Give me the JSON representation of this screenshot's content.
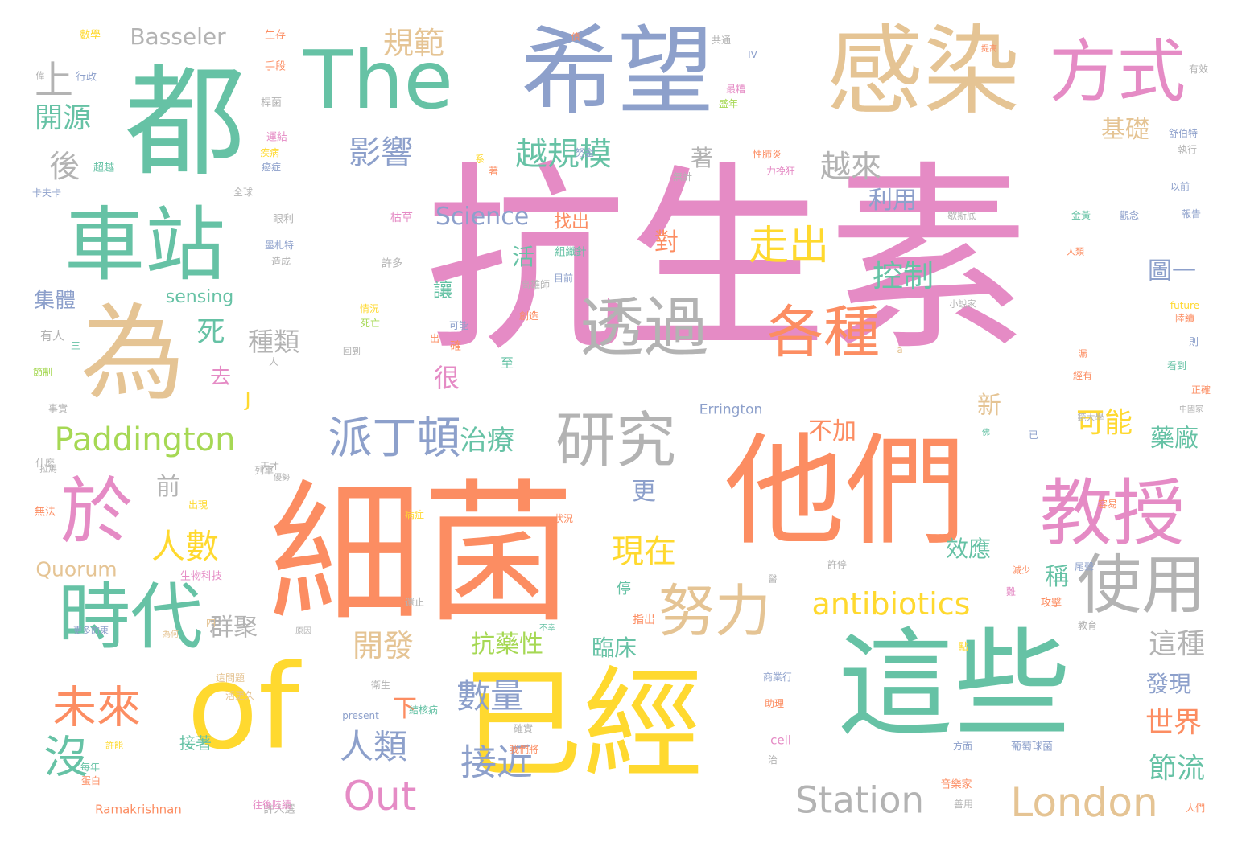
{
  "palette": {
    "pink": "#e58bc5",
    "orange": "#fc8d62",
    "green": "#66c2a5",
    "blue": "#8da0cb",
    "yellow": "#ffd92f",
    "tan": "#e5c494",
    "gray": "#b3b3b3",
    "lime": "#a6d854"
  },
  "words": [
    {
      "text": "抗生素",
      "color": "pink"
    },
    {
      "text": "細菌",
      "color": "orange"
    },
    {
      "text": "他們",
      "color": "orange"
    },
    {
      "text": "這些",
      "color": "green"
    },
    {
      "text": "已經",
      "color": "yellow"
    },
    {
      "text": "of",
      "color": "yellow"
    },
    {
      "text": "都",
      "color": "green"
    },
    {
      "text": "希望",
      "color": "blue"
    },
    {
      "text": "感染",
      "color": "tan"
    },
    {
      "text": "The",
      "color": "green"
    },
    {
      "text": "為",
      "color": "tan"
    },
    {
      "text": "車站",
      "color": "green"
    },
    {
      "text": "方式",
      "color": "pink"
    },
    {
      "text": "時代",
      "color": "green"
    },
    {
      "text": "於",
      "color": "pink"
    },
    {
      "text": "教授",
      "color": "pink"
    },
    {
      "text": "透過",
      "color": "gray"
    },
    {
      "text": "各種",
      "color": "orange"
    },
    {
      "text": "研究",
      "color": "gray"
    },
    {
      "text": "使用",
      "color": "gray"
    },
    {
      "text": "努力",
      "color": "tan"
    },
    {
      "text": "派丁頓",
      "color": "blue"
    },
    {
      "text": "Paddington",
      "color": "lime"
    },
    {
      "text": "London",
      "color": "tan"
    },
    {
      "text": "Station",
      "color": "gray"
    },
    {
      "text": "Out",
      "color": "pink"
    },
    {
      "text": "antibiotics",
      "color": "yellow"
    },
    {
      "text": "沒",
      "color": "green"
    },
    {
      "text": "未來",
      "color": "orange"
    },
    {
      "text": "上",
      "color": "gray"
    },
    {
      "text": "走出",
      "color": "yellow"
    },
    {
      "text": "影響",
      "color": "blue"
    },
    {
      "text": "越規模",
      "color": "green"
    },
    {
      "text": "越來",
      "color": "gray"
    },
    {
      "text": "控制",
      "color": "green"
    },
    {
      "text": "人數",
      "color": "yellow"
    },
    {
      "text": "接近",
      "color": "blue"
    },
    {
      "text": "數量",
      "color": "blue"
    },
    {
      "text": "人類",
      "color": "blue"
    },
    {
      "text": "現在",
      "color": "yellow"
    },
    {
      "text": "開發",
      "color": "tan"
    },
    {
      "text": "Science",
      "color": "blue"
    },
    {
      "text": "規範",
      "color": "tan"
    },
    {
      "text": "開源",
      "color": "green"
    },
    {
      "text": "後",
      "color": "gray"
    },
    {
      "text": "死",
      "color": "green"
    },
    {
      "text": "種類",
      "color": "gray"
    },
    {
      "text": "很",
      "color": "pink"
    },
    {
      "text": "治療",
      "color": "green"
    },
    {
      "text": "可能",
      "color": "yellow"
    },
    {
      "text": "基礎",
      "color": "tan"
    },
    {
      "text": "利用",
      "color": "blue"
    },
    {
      "text": "圖一",
      "color": "blue"
    },
    {
      "text": "前",
      "color": "gray"
    },
    {
      "text": "更",
      "color": "blue"
    },
    {
      "text": "這種",
      "color": "gray"
    },
    {
      "text": "世界",
      "color": "orange"
    },
    {
      "text": "節流",
      "color": "green"
    },
    {
      "text": "藥廠",
      "color": "green"
    },
    {
      "text": "發現",
      "color": "blue"
    },
    {
      "text": "抗藥性",
      "color": "lime"
    },
    {
      "text": "臨床",
      "color": "green"
    },
    {
      "text": "效應",
      "color": "green"
    },
    {
      "text": "群聚",
      "color": "gray"
    },
    {
      "text": "下",
      "color": "orange"
    },
    {
      "text": "不加",
      "color": "orange"
    },
    {
      "text": "新",
      "color": "tan"
    },
    {
      "text": "稱",
      "color": "green"
    },
    {
      "text": "Basseler",
      "color": "gray"
    },
    {
      "text": "集體",
      "color": "blue"
    },
    {
      "text": "sensing",
      "color": "green"
    },
    {
      "text": "Quorum",
      "color": "tan"
    },
    {
      "text": "對",
      "color": "orange"
    },
    {
      "text": "著",
      "color": "gray"
    },
    {
      "text": "活",
      "color": "green"
    },
    {
      "text": "找出",
      "color": "orange"
    },
    {
      "text": "讓",
      "color": "green"
    },
    {
      "text": "去",
      "color": "pink"
    },
    {
      "text": "J",
      "color": "yellow"
    },
    {
      "text": "接著",
      "color": "green"
    },
    {
      "text": "Errington",
      "color": "blue"
    },
    {
      "text": "Ramakrishnan",
      "color": "orange"
    },
    {
      "text": "cell",
      "color": "pink"
    },
    {
      "text": "present",
      "color": "blue"
    },
    {
      "text": "future",
      "color": "yellow"
    },
    {
      "text": "IV",
      "color": "blue"
    },
    {
      "text": "a",
      "color": "tan"
    },
    {
      "text": "生存",
      "color": "orange"
    },
    {
      "text": "數學",
      "color": "yellow"
    },
    {
      "text": "行政",
      "color": "blue"
    },
    {
      "text": "偉",
      "color": "gray"
    },
    {
      "text": "手段",
      "color": "orange"
    },
    {
      "text": "桿菌",
      "color": "gray"
    },
    {
      "text": "運結",
      "color": "pink"
    },
    {
      "text": "疾病",
      "color": "yellow"
    },
    {
      "text": "癌症",
      "color": "blue"
    },
    {
      "text": "超越",
      "color": "green"
    },
    {
      "text": "卡夫卡",
      "color": "blue"
    },
    {
      "text": "全球",
      "color": "gray"
    },
    {
      "text": "眼利",
      "color": "gray"
    },
    {
      "text": "墨札特",
      "color": "blue"
    },
    {
      "text": "造成",
      "color": "gray"
    },
    {
      "text": "有人",
      "color": "gray"
    },
    {
      "text": "三",
      "color": "green"
    },
    {
      "text": "節制",
      "color": "lime"
    },
    {
      "text": "事實",
      "color": "gray"
    },
    {
      "text": "拉馬",
      "color": "gray"
    },
    {
      "text": "無法",
      "color": "orange"
    },
    {
      "text": "每年",
      "color": "green"
    },
    {
      "text": "蛋白",
      "color": "orange"
    },
    {
      "text": "許能",
      "color": "yellow"
    },
    {
      "text": "更多的東",
      "color": "blue"
    },
    {
      "text": "生物科技",
      "color": "pink"
    },
    {
      "text": "許多",
      "color": "gray"
    },
    {
      "text": "枯草",
      "color": "pink"
    },
    {
      "text": "組織針",
      "color": "green"
    },
    {
      "text": "目前",
      "color": "blue"
    },
    {
      "text": "高雄師",
      "color": "gray"
    },
    {
      "text": "情況",
      "color": "yellow"
    },
    {
      "text": "死亡",
      "color": "lime"
    },
    {
      "text": "回到",
      "color": "gray"
    },
    {
      "text": "可能",
      "color": "blue"
    },
    {
      "text": "創造",
      "color": "orange"
    },
    {
      "text": "性肺炎",
      "color": "orange"
    },
    {
      "text": "力挽狂",
      "color": "pink"
    },
    {
      "text": "無計",
      "color": "gray"
    },
    {
      "text": "努金",
      "color": "blue"
    },
    {
      "text": "系",
      "color": "yellow"
    },
    {
      "text": "著",
      "color": "orange"
    },
    {
      "text": "共通",
      "color": "gray"
    },
    {
      "text": "最糟",
      "color": "pink"
    },
    {
      "text": "盛年",
      "color": "lime"
    },
    {
      "text": "債",
      "color": "orange"
    },
    {
      "text": "提高",
      "color": "orange"
    },
    {
      "text": "有效",
      "color": "gray"
    },
    {
      "text": "舒伯特",
      "color": "blue"
    },
    {
      "text": "執行",
      "color": "gray"
    },
    {
      "text": "以前",
      "color": "blue"
    },
    {
      "text": "報告",
      "color": "blue"
    },
    {
      "text": "觀念",
      "color": "blue"
    },
    {
      "text": "金黃",
      "color": "green"
    },
    {
      "text": "歇斯底",
      "color": "gray"
    },
    {
      "text": "人類",
      "color": "orange"
    },
    {
      "text": "小說家",
      "color": "gray"
    },
    {
      "text": "陸續",
      "color": "orange"
    },
    {
      "text": "則",
      "color": "blue"
    },
    {
      "text": "看到",
      "color": "green"
    },
    {
      "text": "漏",
      "color": "orange"
    },
    {
      "text": "經有",
      "color": "orange"
    },
    {
      "text": "正確",
      "color": "orange"
    },
    {
      "text": "中國家",
      "color": "gray"
    },
    {
      "text": "範大學",
      "color": "gray"
    },
    {
      "text": "已",
      "color": "blue"
    },
    {
      "text": "容易",
      "color": "orange"
    },
    {
      "text": "尾聲",
      "color": "blue"
    },
    {
      "text": "減少",
      "color": "orange"
    },
    {
      "text": "許停",
      "color": "gray"
    },
    {
      "text": "難",
      "color": "pink"
    },
    {
      "text": "攻擊",
      "color": "orange"
    },
    {
      "text": "教育",
      "color": "gray"
    },
    {
      "text": "點",
      "color": "yellow"
    },
    {
      "text": "商業行",
      "color": "blue"
    },
    {
      "text": "助理",
      "color": "orange"
    },
    {
      "text": "葡萄球菌",
      "color": "blue"
    },
    {
      "text": "方面",
      "color": "blue"
    },
    {
      "text": "音樂家",
      "color": "orange"
    },
    {
      "text": "人們",
      "color": "orange"
    },
    {
      "text": "善用",
      "color": "gray"
    },
    {
      "text": "我們將",
      "color": "orange"
    },
    {
      "text": "結核病",
      "color": "green"
    },
    {
      "text": "衛生",
      "color": "gray"
    },
    {
      "text": "出現",
      "color": "yellow"
    },
    {
      "text": "什麼",
      "color": "gray"
    },
    {
      "text": "天才",
      "color": "gray"
    },
    {
      "text": "列車",
      "color": "gray"
    },
    {
      "text": "優勢",
      "color": "gray"
    },
    {
      "text": "許人選",
      "color": "gray"
    },
    {
      "text": "往後陸續",
      "color": "pink"
    },
    {
      "text": "停",
      "color": "green"
    },
    {
      "text": "指出",
      "color": "orange"
    },
    {
      "text": "還止",
      "color": "gray"
    },
    {
      "text": "病症",
      "color": "yellow"
    },
    {
      "text": "狀況",
      "color": "orange"
    },
    {
      "text": "不幸",
      "color": "green"
    },
    {
      "text": "至",
      "color": "green"
    },
    {
      "text": "確",
      "color": "orange"
    },
    {
      "text": "出",
      "color": "orange"
    },
    {
      "text": "人",
      "color": "gray"
    },
    {
      "text": "四",
      "color": "tan"
    },
    {
      "text": "為何",
      "color": "tan"
    },
    {
      "text": "原因",
      "color": "gray"
    },
    {
      "text": "這問題",
      "color": "tan"
    },
    {
      "text": "活更久",
      "color": "tan"
    },
    {
      "text": "確實",
      "color": "gray"
    },
    {
      "text": "治",
      "color": "gray"
    },
    {
      "text": "醫",
      "color": "gray"
    },
    {
      "text": "佛",
      "color": "green"
    }
  ]
}
